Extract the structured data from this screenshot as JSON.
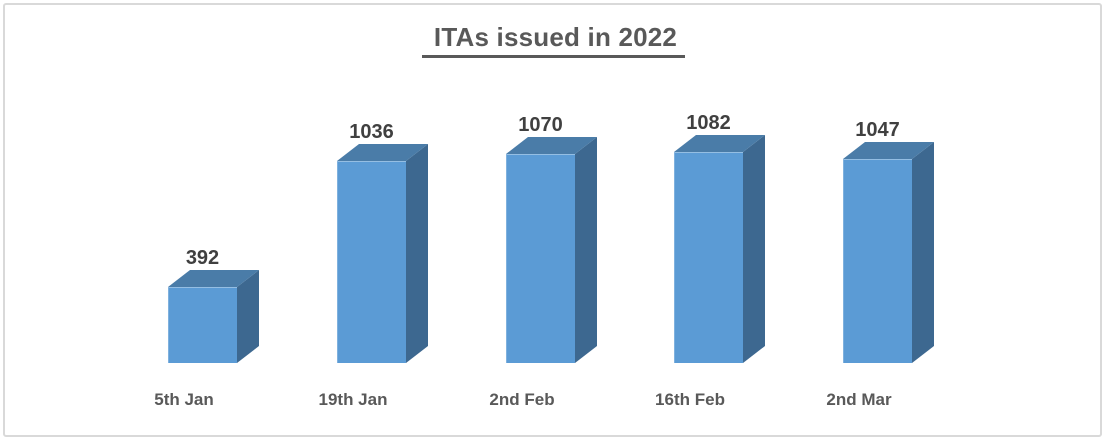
{
  "chart_data": {
    "type": "bar",
    "variant": "3d-column",
    "title": "ITAs issued in 2022",
    "title_underlined": true,
    "categories": [
      "5th Jan",
      "19th Jan",
      "2nd Feb",
      "16th Feb",
      "2nd Mar"
    ],
    "values": [
      392,
      1036,
      1070,
      1082,
      1047
    ],
    "xlabel": "",
    "ylabel": "",
    "ylim": [
      0,
      1160
    ],
    "grid": false,
    "legend": "none",
    "axes_visible": false,
    "data_labels": true,
    "colors": {
      "bar_front": "#5B9BD5",
      "bar_top": "#4A7CA8",
      "bar_side": "#3D6890",
      "title": "#595959",
      "value_label": "#404040",
      "category_label": "#595959",
      "frame_border": "#D9D9D9",
      "background": "#FFFFFF"
    }
  }
}
